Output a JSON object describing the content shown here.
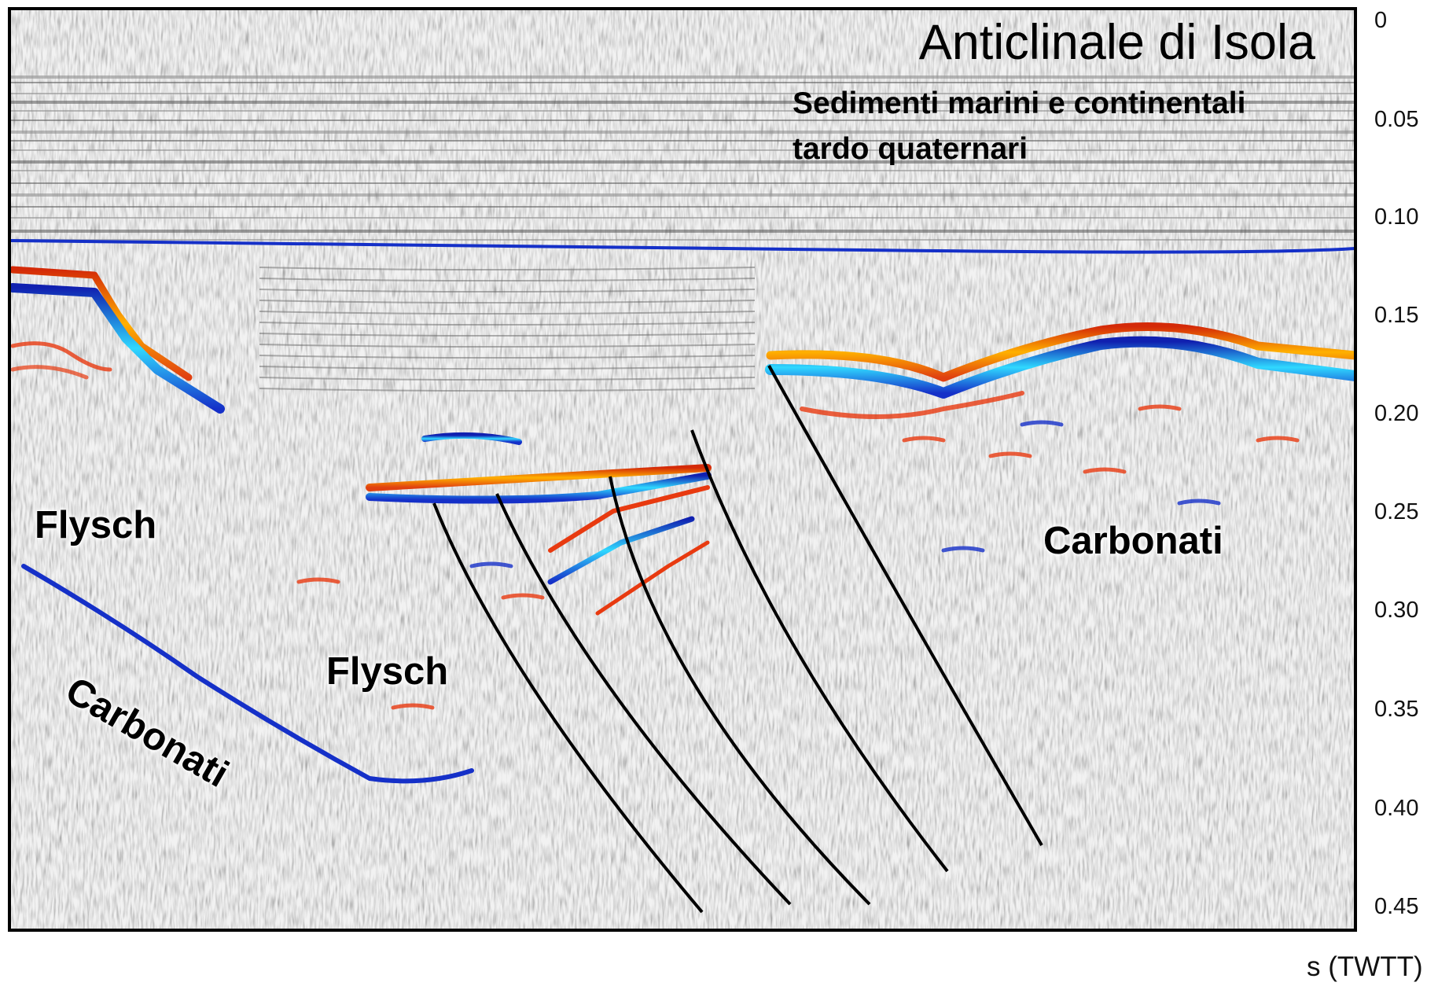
{
  "title": "Anticlinale di Isola",
  "subtitle_lines": [
    "Sedimenti marini e continentali",
    "tardo quaternari"
  ],
  "axis": {
    "units": "s (TWTT)",
    "ticks": [
      "0",
      "0.05",
      "0.10",
      "0.15",
      "0.20",
      "0.25",
      "0.30",
      "0.35",
      "0.40",
      "0.45"
    ]
  },
  "units_labels": {
    "flysch_left": "Flysch",
    "carbonati_left": "Carbonati",
    "flysch_center": "Flysch",
    "carbonati_right": "Carbonati"
  },
  "colors": {
    "frame": "#000000",
    "fault_line": "#000000",
    "reflector_positive": "#e83a10",
    "reflector_positive_strong": "#ffb000",
    "reflector_negative": "#1530c8",
    "reflector_negative_strong": "#20c0ff",
    "noise": "#6b6b6b"
  }
}
